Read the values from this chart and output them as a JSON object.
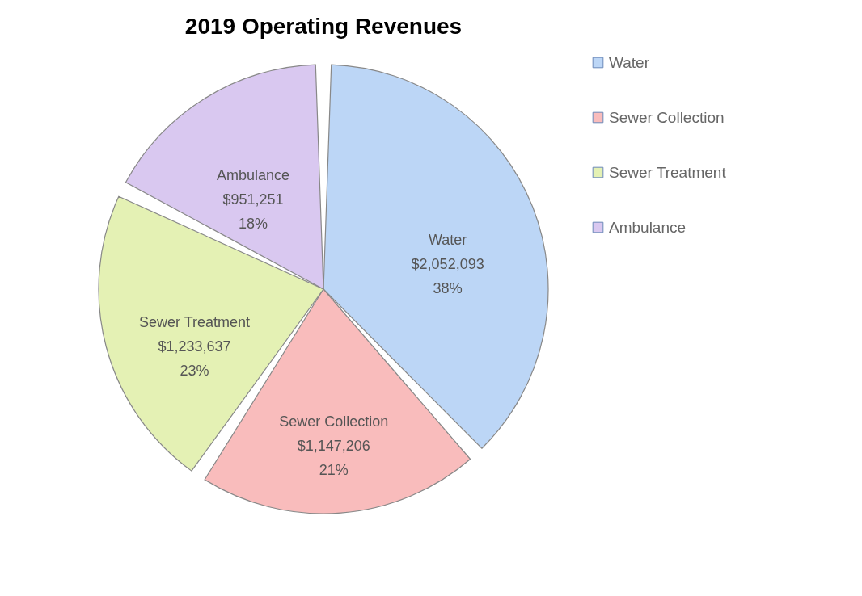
{
  "chart_data": {
    "type": "pie",
    "title": "2019 Operating Revenues",
    "categories": [
      "Water",
      "Sewer Collection",
      "Sewer Treatment",
      "Ambulance"
    ],
    "values": [
      2052093,
      1147206,
      1233637,
      951251
    ],
    "value_labels": [
      "$2,052,093\n38%",
      "$1,147,206\n21%",
      "$1,233,637\n23%",
      "$951,251\n18%"
    ],
    "colors": [
      "#bcd6f6",
      "#f9bcbc",
      "#e4f1b4",
      "#d9c8f0"
    ],
    "legend": "right"
  }
}
